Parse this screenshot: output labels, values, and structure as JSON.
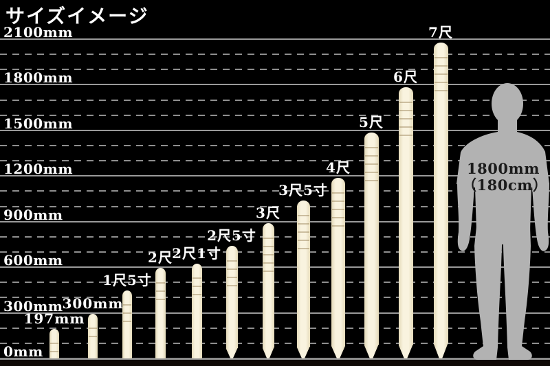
{
  "title": "サイズイメージ",
  "colors": {
    "background": "#000000",
    "text": "#ffffff",
    "grid_solid": "#9a9a9a",
    "grid_dashed": "#8f8f8f",
    "stake_light": "#f9f3df",
    "stake_dark": "#e4dab9",
    "figure_gray": "#b2b2b2",
    "figure_text": "#1c1c1c"
  },
  "chart_data": {
    "type": "bar",
    "title": "サイズイメージ",
    "unit": "mm",
    "y_axis": {
      "max_mm": 2100,
      "major_interval_mm": 300,
      "minor_interval_mm": 100,
      "tick_labels": [
        "2100mm",
        "1800mm",
        "1500mm",
        "1200mm",
        "900mm",
        "600mm",
        "300mm",
        "0mm"
      ],
      "grid": "major solid, minor dashed"
    },
    "bars": [
      {
        "label": "197mm",
        "length_mm": 197,
        "pointed": false
      },
      {
        "label": "300mm",
        "length_mm": 300,
        "pointed": false
      },
      {
        "label": "1尺5寸",
        "length_mm": 454.5,
        "pointed": false
      },
      {
        "label": "2尺",
        "length_mm": 606,
        "pointed": false
      },
      {
        "label": "2尺1寸",
        "length_mm": 636.3,
        "pointed": false
      },
      {
        "label": "2尺5寸",
        "length_mm": 757.5,
        "pointed": true
      },
      {
        "label": "3尺",
        "length_mm": 909,
        "pointed": true
      },
      {
        "label": "3尺5寸",
        "length_mm": 1060.5,
        "pointed": true
      },
      {
        "label": "4尺",
        "length_mm": 1212,
        "pointed": true
      },
      {
        "label": "5尺",
        "length_mm": 1515,
        "pointed": true
      },
      {
        "label": "6尺",
        "length_mm": 1818,
        "pointed": true
      },
      {
        "label": "7尺",
        "length_mm": 2121,
        "pointed": true
      }
    ],
    "reference_figure": {
      "label_line1": "1800mm",
      "label_line2": "（180cm）",
      "height_mm": 1800,
      "height_cm": 180
    }
  }
}
